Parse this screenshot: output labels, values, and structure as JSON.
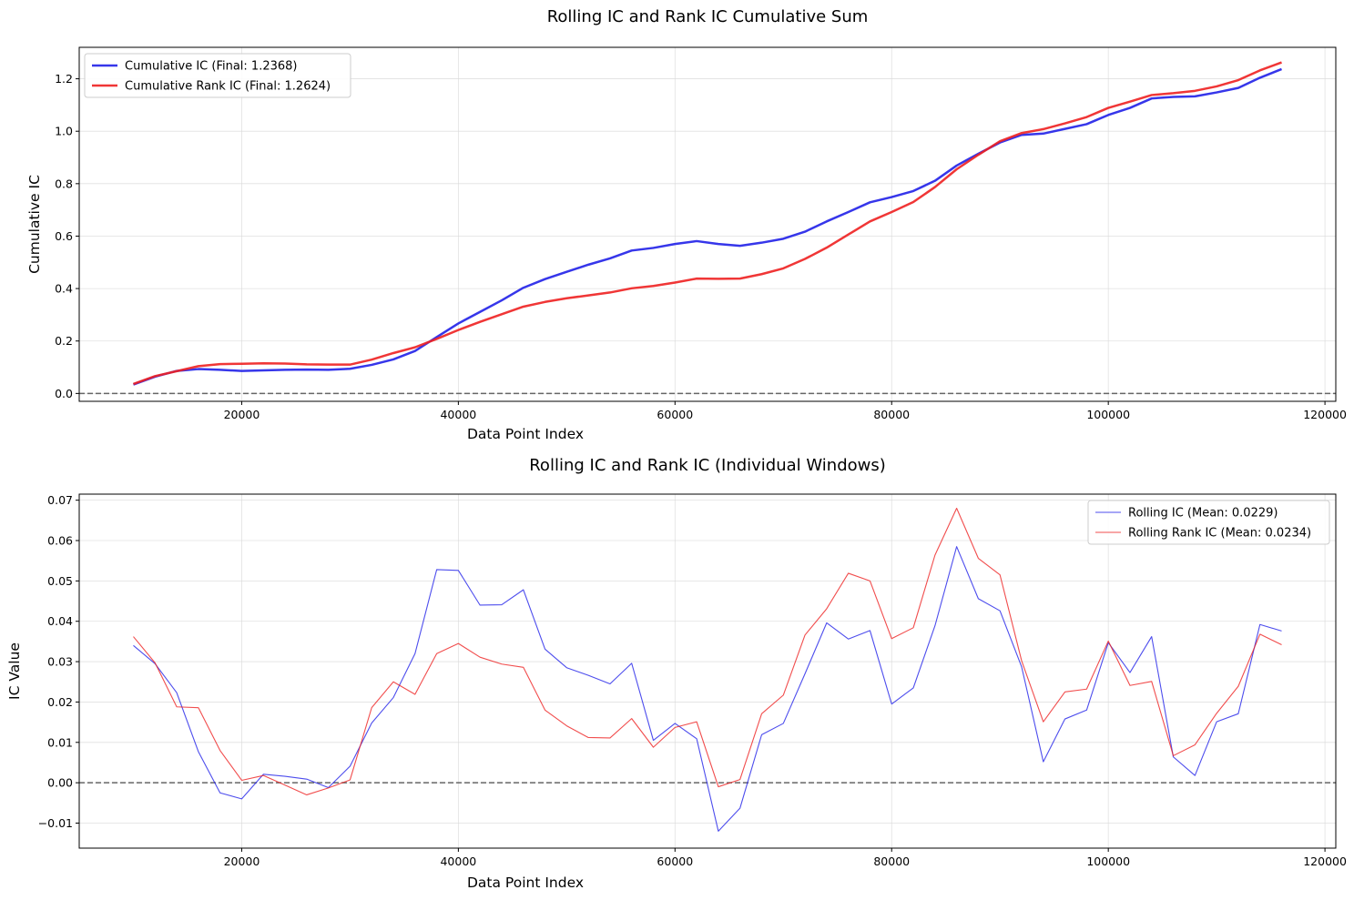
{
  "chart_data": [
    {
      "type": "line",
      "title": "Rolling IC and Rank IC Cumulative Sum",
      "xlabel": "Data Point Index",
      "ylabel": "Cumulative IC",
      "xlim": [
        5000,
        121000
      ],
      "ylim": [
        -0.03,
        1.32
      ],
      "xticks": [
        20000,
        40000,
        60000,
        80000,
        100000,
        120000
      ],
      "yticks": [
        0.0,
        0.2,
        0.4,
        0.6,
        0.8,
        1.0,
        1.2
      ],
      "ytick_labels": [
        "0.0",
        "0.2",
        "0.4",
        "0.6",
        "0.8",
        "1.0",
        "1.2"
      ],
      "grid": true,
      "legend": "top-left",
      "hline": 0,
      "x": [
        10000,
        12000,
        14000,
        16000,
        18000,
        20000,
        22000,
        24000,
        26000,
        28000,
        30000,
        32000,
        34000,
        36000,
        38000,
        40000,
        42000,
        44000,
        46000,
        48000,
        50000,
        52000,
        54000,
        56000,
        58000,
        60000,
        62000,
        64000,
        66000,
        68000,
        70000,
        72000,
        74000,
        76000,
        78000,
        80000,
        82000,
        84000,
        86000,
        88000,
        90000,
        92000,
        94000,
        96000,
        98000,
        100000,
        102000,
        104000,
        106000,
        108000,
        110000,
        112000,
        114000,
        116000
      ],
      "series": [
        {
          "name": "Cumulative IC (Final: 1.2368)",
          "color": "#2020e8",
          "values": [
            0.034,
            0.064,
            0.086,
            0.093,
            0.09,
            0.086,
            0.088,
            0.09,
            0.091,
            0.09,
            0.094,
            0.109,
            0.13,
            0.162,
            0.215,
            0.267,
            0.311,
            0.355,
            0.403,
            0.436,
            0.464,
            0.491,
            0.515,
            0.545,
            0.555,
            0.57,
            0.581,
            0.57,
            0.563,
            0.575,
            0.59,
            0.617,
            0.656,
            0.692,
            0.729,
            0.749,
            0.772,
            0.811,
            0.869,
            0.914,
            0.957,
            0.986,
            0.991,
            1.009,
            1.027,
            1.062,
            1.089,
            1.125,
            1.131,
            1.133,
            1.148,
            1.165,
            1.204,
            1.2368
          ]
        },
        {
          "name": "Cumulative Rank IC (Final: 1.2624)",
          "color": "#ee2020",
          "values": [
            0.036,
            0.066,
            0.085,
            0.104,
            0.112,
            0.113,
            0.115,
            0.114,
            0.111,
            0.11,
            0.11,
            0.129,
            0.154,
            0.176,
            0.208,
            0.242,
            0.273,
            0.302,
            0.331,
            0.349,
            0.363,
            0.374,
            0.385,
            0.401,
            0.41,
            0.423,
            0.438,
            0.437,
            0.438,
            0.455,
            0.477,
            0.513,
            0.556,
            0.606,
            0.656,
            0.692,
            0.73,
            0.787,
            0.855,
            0.91,
            0.962,
            0.993,
            1.008,
            1.03,
            1.054,
            1.089,
            1.113,
            1.138,
            1.145,
            1.154,
            1.171,
            1.195,
            1.232,
            1.2624
          ]
        }
      ]
    },
    {
      "type": "line",
      "title": "Rolling IC and Rank IC (Individual Windows)",
      "xlabel": "Data Point Index",
      "ylabel": "IC Value",
      "xlim": [
        5000,
        121000
      ],
      "ylim": [
        -0.0162,
        0.0715
      ],
      "xticks": [
        20000,
        40000,
        60000,
        80000,
        100000,
        120000
      ],
      "yticks": [
        -0.01,
        0.0,
        0.01,
        0.02,
        0.03,
        0.04,
        0.05,
        0.06,
        0.07
      ],
      "ytick_labels": [
        "−0.01",
        "0.00",
        "0.01",
        "0.02",
        "0.03",
        "0.04",
        "0.05",
        "0.06",
        "0.07"
      ],
      "grid": true,
      "legend": "top-right",
      "hline": 0,
      "x": [
        10000,
        12000,
        14000,
        16000,
        18000,
        20000,
        22000,
        24000,
        26000,
        28000,
        30000,
        32000,
        34000,
        36000,
        38000,
        40000,
        42000,
        44000,
        46000,
        48000,
        50000,
        52000,
        54000,
        56000,
        58000,
        60000,
        62000,
        64000,
        66000,
        68000,
        70000,
        72000,
        74000,
        76000,
        78000,
        80000,
        82000,
        84000,
        86000,
        88000,
        90000,
        92000,
        94000,
        96000,
        98000,
        100000,
        102000,
        104000,
        106000,
        108000,
        110000,
        112000,
        114000,
        116000
      ],
      "series": [
        {
          "name": "Rolling IC (Mean: 0.0229)",
          "color": "#2020e8",
          "values": [
            0.034,
            0.0295,
            0.0223,
            0.0077,
            -0.0025,
            -0.004,
            0.0021,
            0.0016,
            0.0009,
            -0.0012,
            0.0041,
            0.0148,
            0.0211,
            0.032,
            0.0528,
            0.0526,
            0.044,
            0.0441,
            0.0478,
            0.0331,
            0.0285,
            0.0266,
            0.0245,
            0.0296,
            0.0105,
            0.0147,
            0.0109,
            -0.012,
            -0.0063,
            0.0119,
            0.0147,
            0.027,
            0.0396,
            0.0356,
            0.0377,
            0.0195,
            0.0235,
            0.0389,
            0.0585,
            0.0456,
            0.0426,
            0.0287,
            0.0052,
            0.0158,
            0.018,
            0.0347,
            0.0273,
            0.0362,
            0.0064,
            0.0018,
            0.0151,
            0.0171,
            0.0392,
            0.0376
          ]
        },
        {
          "name": "Rolling Rank IC (Mean: 0.0234)",
          "color": "#ee2020",
          "values": [
            0.0362,
            0.0297,
            0.0188,
            0.0186,
            0.008,
            0.0006,
            0.0018,
            -0.0006,
            -0.003,
            -0.0013,
            0.0007,
            0.0186,
            0.025,
            0.0219,
            0.032,
            0.0345,
            0.0311,
            0.0294,
            0.0286,
            0.018,
            0.0141,
            0.0112,
            0.0111,
            0.0159,
            0.0088,
            0.0137,
            0.0151,
            -0.001,
            0.0008,
            0.0171,
            0.0217,
            0.0366,
            0.0431,
            0.0519,
            0.05,
            0.0357,
            0.0384,
            0.0564,
            0.068,
            0.0556,
            0.0515,
            0.0302,
            0.0151,
            0.0225,
            0.0232,
            0.0351,
            0.0241,
            0.0251,
            0.0067,
            0.0094,
            0.0172,
            0.0239,
            0.0368,
            0.0342
          ]
        }
      ]
    }
  ]
}
